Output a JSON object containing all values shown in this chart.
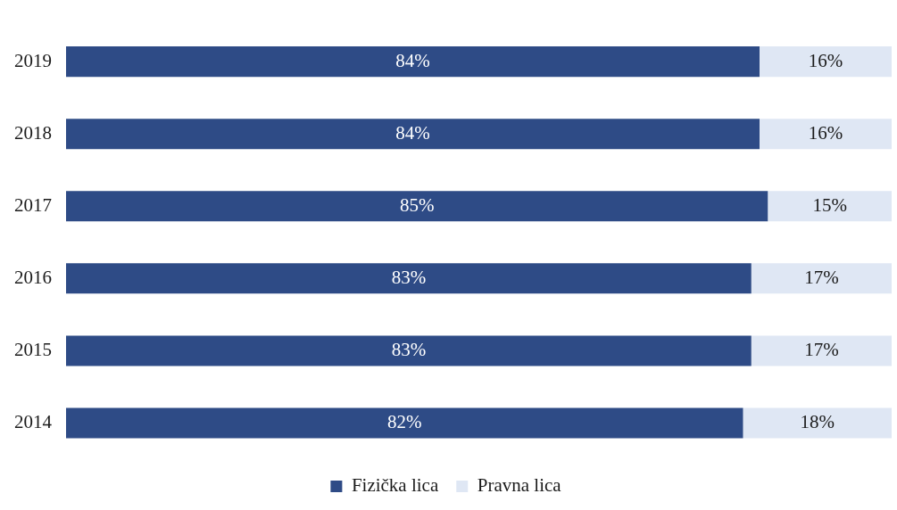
{
  "chart_data": {
    "type": "bar",
    "orientation": "horizontal",
    "stacked": true,
    "categories": [
      "2019",
      "2018",
      "2017",
      "2016",
      "2015",
      "2014"
    ],
    "series": [
      {
        "name": "Fizička lica",
        "color": "#2e4b86",
        "values": [
          84,
          84,
          85,
          83,
          83,
          82
        ],
        "value_labels": [
          "84%",
          "84%",
          "85%",
          "83%",
          "83%",
          "82%"
        ]
      },
      {
        "name": "Pravna lica",
        "color": "#dfe7f4",
        "values": [
          16,
          16,
          15,
          17,
          17,
          18
        ],
        "value_labels": [
          "16%",
          "16%",
          "15%",
          "17%",
          "17%",
          "18%"
        ]
      }
    ],
    "legend": "bottom",
    "tick_labels": "y"
  }
}
